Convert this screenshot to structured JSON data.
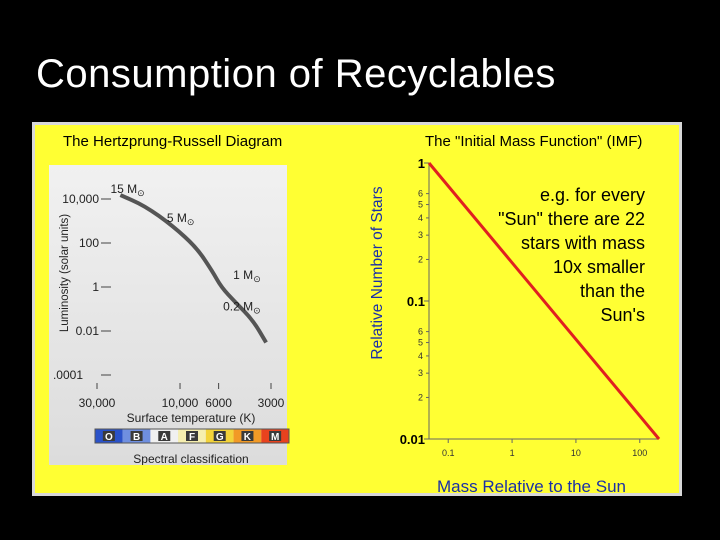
{
  "slide": {
    "title": "Consumption of Recyclables"
  },
  "hr_diagram": {
    "title": "The Hertzprung-Russell Diagram",
    "ylabel": "Luminosity (solar units)",
    "xlabel": "Surface temperature (K)",
    "y_ticks": [
      "10,000",
      "100",
      "1",
      "0.01",
      ".0001"
    ],
    "x_ticks": [
      "30,000",
      "10,000",
      "6000",
      "3000"
    ],
    "mass_labels": [
      "15 M",
      "5 M",
      "1 M",
      "0.2 M"
    ],
    "sun_symbol": "⊙",
    "spectral_title": "Spectral classification",
    "spectral_classes": [
      "O",
      "B",
      "A",
      "F",
      "G",
      "K",
      "M"
    ],
    "spectral_colors": [
      "#2a52c9",
      "#6f8fe0",
      "#f0f0f0",
      "#f6efb0",
      "#f3d33a",
      "#f29a26",
      "#e9421e"
    ]
  },
  "imf": {
    "title": "The \"Initial Mass Function\" (IMF)",
    "ylabel": "Relative Number of Stars",
    "xlabel": "Mass Relative to the Sun",
    "note_lines": [
      "e.g. for every",
      "\"Sun\" there are 22",
      "stars with mass",
      "10x  smaller",
      "than the",
      "Sun's"
    ],
    "y_major_ticks": [
      "1",
      "0.1",
      "0.01"
    ],
    "y_minor_ticks_upper": [
      "6",
      "5",
      "4",
      "3",
      "2"
    ],
    "y_minor_ticks_lower": [
      "6",
      "5",
      "4",
      "3",
      "2"
    ],
    "x_ticks": [
      "0.1",
      "1",
      "10",
      "100"
    ],
    "line_color": "#e02020"
  },
  "chart_data": [
    {
      "type": "line",
      "title": "The Hertzprung-Russell Diagram",
      "xlabel": "Surface temperature (K)",
      "ylabel": "Luminosity (solar units)",
      "x_scale": "log-reversed",
      "y_scale": "log",
      "xlim": [
        30000,
        3000
      ],
      "ylim": [
        0.0001,
        10000
      ],
      "series": [
        {
          "x": [
            22000,
            16000,
            11000,
            8000,
            6500,
            5800,
            4800,
            3800,
            3200
          ],
          "y": [
            15000,
            5000,
            600,
            60,
            5,
            1,
            0.2,
            0.03,
            0.003
          ]
        }
      ],
      "annotations": [
        {
          "text": "15 M⊙",
          "x": 22000,
          "y": 15000
        },
        {
          "text": "5 M⊙",
          "x": 11000,
          "y": 600
        },
        {
          "text": "1 M⊙",
          "x": 5800,
          "y": 1
        },
        {
          "text": "0.2 M⊙",
          "x": 3800,
          "y": 0.03
        }
      ]
    },
    {
      "type": "line",
      "title": "The \"Initial Mass Function\" (IMF)",
      "xlabel": "Mass Relative to the Sun",
      "ylabel": "Relative Number of Stars",
      "x_scale": "log",
      "y_scale": "log",
      "xlim": [
        0.05,
        200
      ],
      "ylim": [
        0.01,
        1
      ],
      "series": [
        {
          "x": [
            0.05,
            200
          ],
          "y": [
            1,
            0.01
          ],
          "color": "#e02020"
        }
      ]
    }
  ]
}
